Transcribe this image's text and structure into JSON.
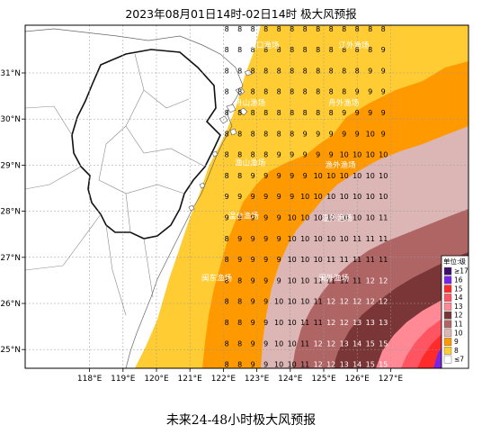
{
  "title": "2023年08月01日14时-02日14时 极大风预报",
  "caption": "未来24-48小时极大风预报",
  "axes": {
    "lon_labels": [
      "118°E",
      "119°E",
      "120°E",
      "121°E",
      "122°E",
      "123°E",
      "124°E",
      "125°E",
      "126°E",
      "127°E"
    ],
    "lat_labels": [
      "31°N",
      "30°N",
      "29°N",
      "28°N",
      "27°N",
      "26°N",
      "25°N"
    ]
  },
  "zones": [
    {
      "name": "长江口渔场",
      "lon": 123.1,
      "lat": 31.55
    },
    {
      "name": "江外渔场",
      "lon": 125.9,
      "lat": 31.55
    },
    {
      "name": "舟山渔场",
      "lon": 122.8,
      "lat": 30.3
    },
    {
      "name": "舟外渔场",
      "lon": 125.6,
      "lat": 30.3
    },
    {
      "name": "渔山渔场",
      "lon": 122.8,
      "lat": 29.0
    },
    {
      "name": "渔外渔场",
      "lon": 125.5,
      "lat": 28.95
    },
    {
      "name": "温台渔场",
      "lon": 122.6,
      "lat": 27.85
    },
    {
      "name": "温外渔场",
      "lon": 125.4,
      "lat": 27.8
    },
    {
      "name": "闽东渔场",
      "lon": 121.8,
      "lat": 26.5
    },
    {
      "name": "闽外渔场",
      "lon": 125.3,
      "lat": 26.5
    }
  ],
  "legend": {
    "title": "单位:级",
    "entries": [
      {
        "label": "≥17",
        "color": "#3d0e6b"
      },
      {
        "label": "16",
        "color": "#7a24e6"
      },
      {
        "label": "15",
        "color": "#ff2a2a"
      },
      {
        "label": "14",
        "color": "#ff5563"
      },
      {
        "label": "13",
        "color": "#ff8a95"
      },
      {
        "label": "12",
        "color": "#7a3636"
      },
      {
        "label": "11",
        "color": "#b06565"
      },
      {
        "label": "10",
        "color": "#dcb5b5"
      },
      {
        "label": "9",
        "color": "#ff9900"
      },
      {
        "label": "8",
        "color": "#ffcc33"
      },
      {
        "label": "≤7",
        "color": "#ffffff"
      }
    ]
  },
  "grid_values": [
    {
      "lon": 122.5,
      "values": [
        null,
        null,
        null,
        8,
        8,
        8,
        8,
        8,
        8,
        8,
        9,
        9,
        9,
        8,
        8,
        8,
        8,
        8,
        8,
        8,
        8,
        8,
        8,
        null,
        null,
        null,
        null,
        null,
        null,
        null,
        null,
        null,
        null,
        null,
        null,
        null,
        null,
        null
      ]
    },
    {
      "lon": 122.875,
      "values": [
        null,
        null,
        null,
        8,
        8,
        8,
        8,
        8,
        8,
        8,
        8,
        8,
        9,
        8,
        8,
        8,
        8,
        9,
        8,
        9,
        9,
        9,
        9,
        9,
        9,
        9,
        9,
        9,
        9,
        9,
        9,
        9,
        9,
        9,
        9,
        9,
        9,
        null
      ]
    },
    {
      "lon": 123.25,
      "values": [
        null,
        null,
        null,
        8,
        8,
        8,
        8,
        8,
        8,
        8,
        9,
        9,
        9,
        8,
        8,
        8,
        8,
        8,
        8,
        8,
        8,
        8,
        8,
        9,
        9,
        9,
        9,
        9,
        9,
        9,
        9,
        9,
        9,
        9,
        9,
        9,
        9,
        null
      ]
    },
    {
      "lon": 123.625,
      "values": [
        null,
        null,
        null,
        8,
        8,
        8,
        8,
        8,
        8,
        8,
        9,
        9,
        9,
        9,
        9,
        9,
        9,
        10,
        9,
        9,
        9,
        10,
        9,
        9,
        9,
        9,
        9,
        9,
        9,
        9,
        9,
        9,
        9,
        9,
        9,
        9,
        9,
        null
      ]
    },
    {
      "lon": 124.0,
      "values": [
        null,
        null,
        null,
        8,
        8,
        8,
        8,
        8,
        8,
        8,
        9,
        9,
        9,
        9,
        9,
        10,
        10,
        10,
        10,
        10,
        10,
        10,
        9,
        9,
        9,
        9,
        9,
        9,
        9,
        9,
        9,
        9,
        9,
        9,
        9,
        9,
        9,
        null
      ]
    },
    {
      "lon": 124.375,
      "values": [
        null,
        null,
        null,
        8,
        8,
        8,
        8,
        8,
        8,
        8,
        9,
        9,
        9,
        10,
        10,
        10,
        10,
        10,
        10,
        10,
        10,
        10,
        9,
        9,
        9,
        9,
        9,
        9,
        9,
        9,
        9,
        9,
        9,
        9,
        9,
        9,
        9,
        null
      ]
    },
    {
      "lon": 124.75,
      "values": [
        8,
        8,
        8,
        8,
        8,
        8,
        8,
        8,
        8,
        8,
        9,
        9,
        9,
        10,
        10,
        10,
        10,
        10,
        10,
        10,
        10,
        10,
        9,
        9,
        9,
        9,
        9,
        9,
        9,
        9,
        9,
        9,
        9,
        9,
        9,
        9,
        9,
        null
      ]
    }
  ],
  "grid_labels": [
    [
      "8",
      "8",
      "8",
      "8",
      "8",
      "8",
      "8",
      "8",
      "8",
      "8",
      "8",
      "8",
      "8"
    ],
    [
      "8",
      "8",
      "8",
      "8",
      "8",
      "8",
      "8",
      "8",
      "8",
      "8",
      "8",
      "8",
      "9"
    ],
    [
      "8",
      "8",
      "8",
      "8",
      "8",
      "8",
      "8",
      "8",
      "8",
      "8",
      "8",
      "9",
      "9"
    ],
    [
      "8",
      "8",
      "8",
      "8",
      "8",
      "8",
      "8",
      "8",
      "8",
      "8",
      "9",
      "9",
      "9"
    ],
    [
      "8",
      "8",
      "8",
      "8",
      "8",
      "8",
      "8",
      "8",
      "8",
      "9",
      "9",
      "9",
      "9"
    ],
    [
      "8",
      "8",
      "8",
      "8",
      "8",
      "8",
      "9",
      "9",
      "9",
      "9",
      "9",
      "10",
      "9"
    ],
    [
      "8",
      "8",
      "8",
      "8",
      "9",
      "9",
      "9",
      "9",
      "9",
      "10",
      "10",
      "10",
      "10"
    ],
    [
      "8",
      "8",
      "9",
      "9",
      "9",
      "9",
      "9",
      "10",
      "10",
      "10",
      "10",
      "10",
      "10"
    ],
    [
      "9",
      "9",
      "9",
      "9",
      "9",
      "9",
      "10",
      "10",
      "10",
      "10",
      "10",
      "10",
      "10"
    ],
    [
      "9",
      "9",
      "9",
      "9",
      "9",
      "10",
      "10",
      "10",
      "10",
      "10",
      "10",
      "10",
      "11"
    ],
    [
      "8",
      "9",
      "9",
      "9",
      "9",
      "10",
      "10",
      "10",
      "10",
      "10",
      "11",
      "11",
      "11"
    ],
    [
      "8",
      "9",
      "9",
      "9",
      "9",
      "10",
      "10",
      "10",
      "11",
      "11",
      "11",
      "11",
      "11"
    ],
    [
      "8",
      "8",
      "9",
      "9",
      "9",
      "10",
      "10",
      "11",
      "11",
      "11",
      "11",
      "12",
      "12"
    ],
    [
      "8",
      "8",
      "9",
      "9",
      "10",
      "10",
      "10",
      "11",
      "12",
      "12",
      "12",
      "12",
      "12"
    ],
    [
      "8",
      "8",
      "9",
      "9",
      "10",
      "10",
      "11",
      "11",
      "12",
      "12",
      "13",
      "13",
      "13"
    ],
    [
      "8",
      "8",
      "9",
      "9",
      "10",
      "10",
      "11",
      "12",
      "12",
      "13",
      "14",
      "15",
      "15"
    ],
    [
      "8",
      "8",
      "9",
      "9",
      "10",
      "10",
      "11",
      "12",
      "12",
      "13",
      "14",
      "15",
      "15"
    ]
  ]
}
